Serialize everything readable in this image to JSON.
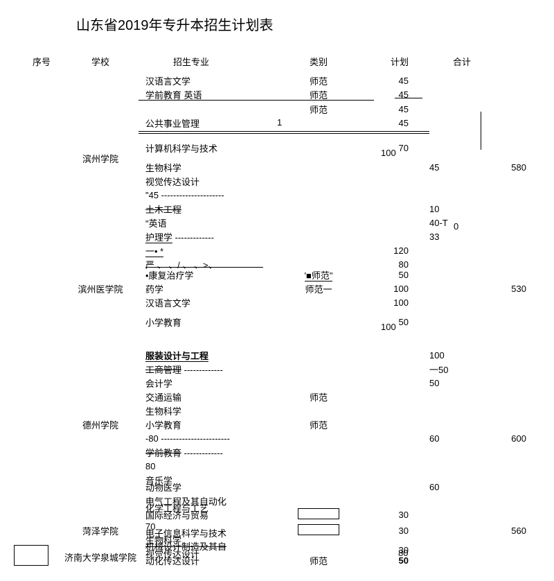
{
  "title": "山东省2019年专升本招生计划表",
  "headers": {
    "seq": "序号",
    "school": "学校",
    "major": "招生专业",
    "category": "类别",
    "plan": "计划",
    "total": "合计"
  },
  "groups": [
    {
      "school": "滨州学院",
      "total": "580",
      "seqNote": "1",
      "rows": [
        {
          "major": "汉语言文学",
          "category": "师范",
          "plan": "45"
        },
        {
          "major": "学前教育  英语",
          "category": "师范",
          "plan": "45",
          "hlineAfter": true
        },
        {
          "major": "",
          "category": "师范",
          "plan": "45",
          "hlineBefore": true
        },
        {
          "major": "公共事业管理",
          "category": "",
          "plan": "45",
          "hlineBelowMajor": true
        },
        {
          "major": "计算机科学与技术",
          "category": "",
          "plan": "70",
          "plan2": "100"
        },
        {
          "major": "生物科学",
          "category": "",
          "plan": "",
          "planOff": "45"
        },
        {
          "major": "视觉传达设计",
          "category": "",
          "plan": ""
        },
        {
          "major": "\"45 ---------------------",
          "category": "",
          "plan": ""
        },
        {
          "major": "土木工程",
          "strike": true,
          "category": "",
          "plan": "",
          "planOff": "10"
        },
        {
          "major": "\"英语",
          "category": "",
          "plan": "",
          "planOff": "40-T",
          "planOff2": "0"
        },
        {
          "major": "护理学",
          "underline": true,
          "dashAfter": true,
          "category": "",
          "plan": "",
          "planOff": "33"
        }
      ]
    },
    {
      "school": "滨州医学院",
      "total": "530",
      "rows": [
        {
          "major": "一• *",
          "underline": true,
          "category": "",
          "plan": "120"
        },
        {
          "major": "   严 、  、/  、   、>、",
          "category": "",
          "plan": "80"
        },
        {
          "major": "•康复治疗学",
          "category": "'■师范\"",
          "catUnderline": true,
          "plan": "50",
          "hlineAboveMajor": true
        },
        {
          "major": "药学",
          "category": "师范一",
          "plan": "100"
        },
        {
          "major": "汉语言文学",
          "category": "",
          "plan": "100"
        },
        {
          "major": "小学教育",
          "category": "",
          "plan": "50",
          "plan2": "100"
        }
      ]
    },
    {
      "school": "德州学院",
      "total": "600",
      "rows": [
        {
          "major": "",
          "category": "",
          "plan": ""
        },
        {
          "major": "服装设计与工程",
          "bold": true,
          "underline": true,
          "category": "",
          "plan": "",
          "planOff": "100"
        },
        {
          "major": "工商管理",
          "strike": true,
          "dashAfter": true,
          "category": "",
          "plan": "",
          "planOff": "一50"
        },
        {
          "major": "会计学",
          "category": "",
          "plan": "",
          "planOff": "50"
        },
        {
          "major": "交通运输",
          "category": "师范",
          "plan": ""
        },
        {
          "major": "生物科学",
          "category": "",
          "plan": ""
        },
        {
          "major": "小学教育",
          "category": "师范",
          "plan": ""
        },
        {
          "major": "-80 -----------------------",
          "category": "",
          "plan": "",
          "planOff": "60"
        },
        {
          "major": "学前教育",
          "strike": true,
          "dashAfter": true,
          "category": "",
          "plan": ""
        },
        {
          "major": "80",
          "category": "",
          "plan": ""
        },
        {
          "major": "音乐学",
          "category": "",
          "plan": ""
        },
        {
          "major": "动物医学",
          "overlap": true,
          "category": "",
          "plan": "",
          "planOff": "60"
        },
        {
          "major": "电气工程及其自动化",
          "category": "",
          "plan": ""
        },
        {
          "major": "化学工程与工艺",
          "overlap": true,
          "category": "",
          "plan": ""
        }
      ]
    },
    {
      "school": "菏泽学院",
      "total": "560",
      "rows": [
        {
          "major": "国际经济与贸易",
          "overlap": true,
          "category": "",
          "plan": "30",
          "box": true
        },
        {
          "major": "70",
          "overlap2": "电子信息科学与技术",
          "category": "",
          "plan": "30",
          "box": true
        },
        {
          "major": "生物科学",
          "overlap": true,
          "category": "",
          "plan": ""
        }
      ]
    },
    {
      "school": "济南大学泉城学院",
      "total": "",
      "boxLeft": true,
      "rows": [
        {
          "major": "机械设计制造及其自",
          "strike": true,
          "overlap": true,
          "overlap2": "视觉传达设计",
          "category": "",
          "plan": "30",
          "plan2b": "80"
        },
        {
          "major": "动化传达设计",
          "overlap": true,
          "category": "师范",
          "plan": "50",
          "bold2": true
        }
      ]
    }
  ]
}
